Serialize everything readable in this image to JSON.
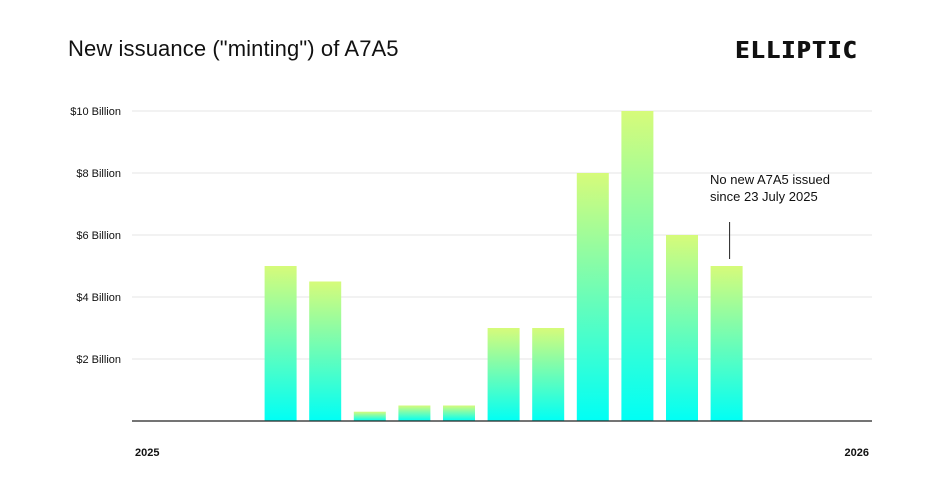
{
  "header": {
    "title": "New issuance (\"minting\") of A7A5",
    "logo_text": "ELLIPTIC"
  },
  "colors": {
    "bar_top": "#d6fb7a",
    "bar_bottom": "#00fff5",
    "grid": "#e6e6e6",
    "axis": "#222222"
  },
  "chart_data": {
    "type": "bar",
    "title": "New issuance (\"minting\") of A7A5",
    "xlabel": "",
    "ylabel": "",
    "x_start_label": "2025",
    "x_end_label": "2026",
    "y_unit": "USD billion",
    "ylim": [
      0,
      10
    ],
    "yticks": [
      2,
      4,
      6,
      8,
      10
    ],
    "ytick_labels": [
      "$2 Billion",
      "$4 Billion",
      "$6 Billion",
      "$8 Billion",
      "$10 Billion"
    ],
    "grid": true,
    "legend": "none",
    "values": [
      0,
      0,
      0,
      5,
      4.5,
      0.3,
      0.5,
      0.5,
      3,
      3,
      8,
      10,
      6,
      5,
      0,
      0
    ],
    "annotation": {
      "line1": "No new A7A5 issued",
      "line2": "since 23 July 2025",
      "target_bar_index": 13
    }
  }
}
